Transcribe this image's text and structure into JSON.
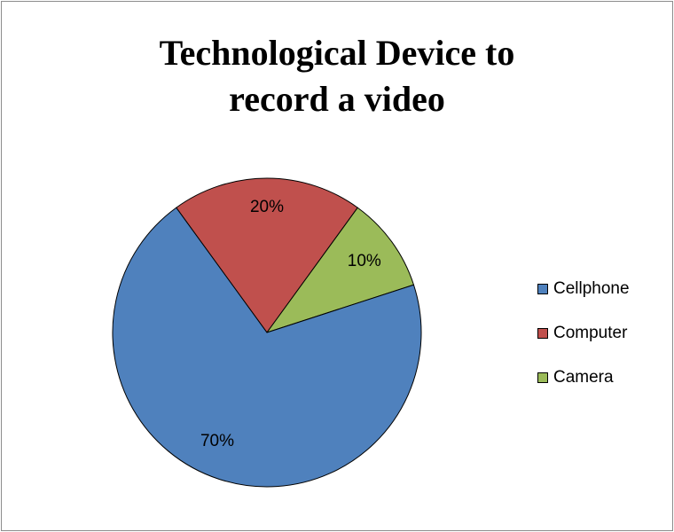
{
  "chart_data": {
    "type": "pie",
    "title_lines": [
      "Technological Device to",
      "record a video"
    ],
    "slices": [
      {
        "label": "Cellphone",
        "value": 70,
        "data_label": "70%",
        "color": "#4F81BD"
      },
      {
        "label": "Computer",
        "value": 20,
        "data_label": "20%",
        "color": "#C0504D"
      },
      {
        "label": "Camera",
        "value": 10,
        "data_label": "10%",
        "color": "#9BBB59"
      }
    ],
    "legend_position": "right"
  }
}
